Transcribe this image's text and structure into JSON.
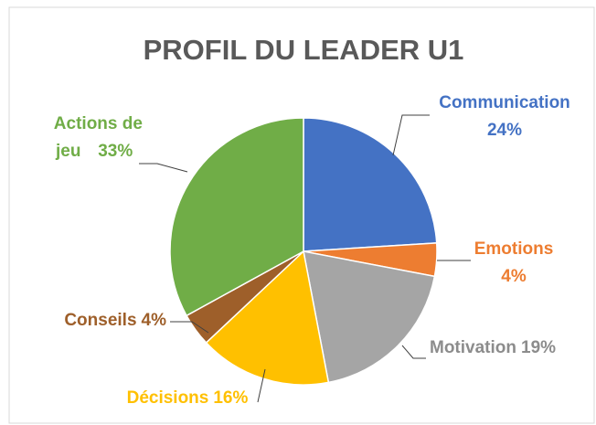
{
  "chart_data": {
    "type": "pie",
    "title": "PROFIL DU LEADER U1",
    "categories": [
      "Communication",
      "Emotions",
      "Motivation",
      "Décisions",
      "Conseils",
      "Actions de jeu"
    ],
    "values": [
      24,
      4,
      19,
      16,
      4,
      33
    ],
    "value_labels": [
      "24%",
      "4%",
      "19%",
      "16%",
      "4%",
      "33%"
    ],
    "colors": [
      "#4472c4",
      "#ed7d31",
      "#a5a5a5",
      "#ffc000",
      "#9e5f2a",
      "#70ad47"
    ]
  }
}
